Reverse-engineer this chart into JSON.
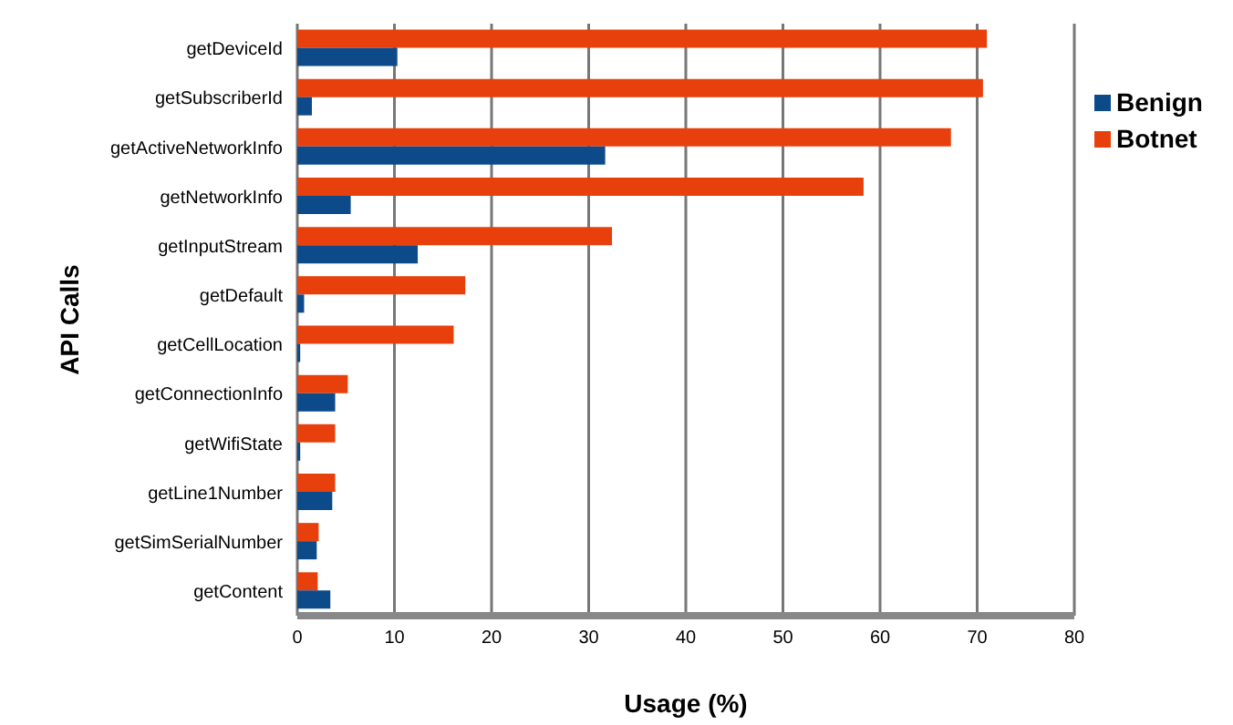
{
  "chart_data": {
    "type": "bar",
    "orientation": "horizontal",
    "xlabel": "Usage (%)",
    "ylabel": "API Calls",
    "categories": [
      "getDeviceId",
      "getSubscriberId",
      "getActiveNetworkInfo",
      "getNetworkInfo",
      "getInputStream",
      "getDefault",
      "getCellLocation",
      "getConnectionInfo",
      "getWifiState",
      "getLine1Number",
      "getSimSerialNumber",
      "getContent"
    ],
    "series": [
      {
        "name": "Benign",
        "color": "#0d4a8a",
        "values": [
          10.3,
          1.5,
          31.7,
          5.5,
          12.4,
          0.7,
          0.3,
          3.9,
          0.3,
          3.6,
          2.0,
          3.4
        ]
      },
      {
        "name": "Botnet",
        "color": "#e8400c",
        "values": [
          71,
          70.6,
          67.3,
          58.3,
          32.4,
          17.3,
          16.1,
          5.2,
          3.9,
          3.9,
          2.2,
          2.1
        ]
      }
    ],
    "xlim": [
      0,
      80
    ],
    "xticks": [
      0,
      10,
      20,
      30,
      40,
      50,
      60,
      70,
      80
    ],
    "grid": "x",
    "legend": "right"
  }
}
